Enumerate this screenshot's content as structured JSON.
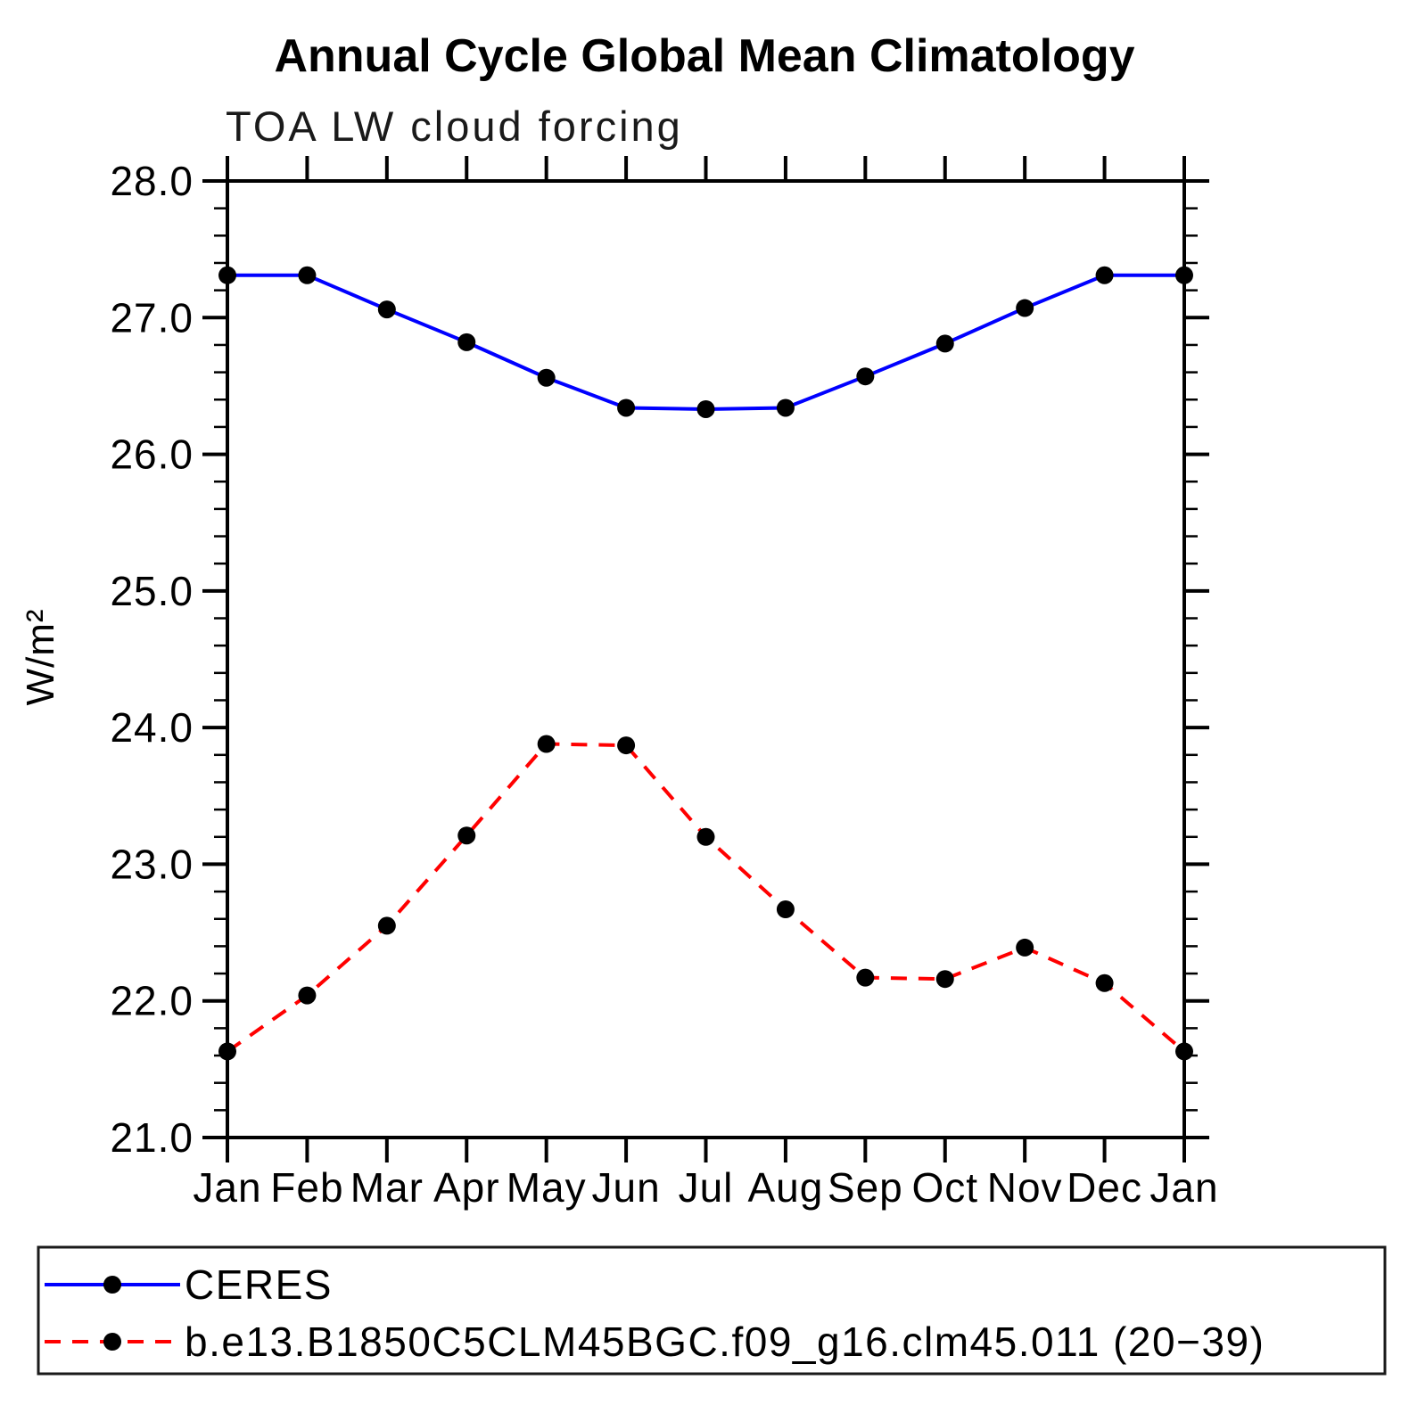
{
  "page": {
    "background_color": "#ffffff"
  },
  "colors": {
    "axis": "#000000",
    "marker": "#000000",
    "ceres_line": "#0000ff",
    "model_line": "#ff0000",
    "legend_border": "#1a1a1a"
  },
  "chart_data": {
    "type": "line",
    "title": "Annual Cycle Global Mean Climatology",
    "subtitle": "TOA LW cloud forcing",
    "ylabel": "W/m²",
    "xlabel": "",
    "x_tick_labels": [
      "Jan",
      "Feb",
      "Mar",
      "Apr",
      "May",
      "Jun",
      "Jul",
      "Aug",
      "Sep",
      "Oct",
      "Nov",
      "Dec",
      "Jan"
    ],
    "ylim": [
      21.0,
      28.0
    ],
    "y_tick_values": [
      28.0,
      27.0,
      26.0,
      25.0,
      24.0,
      23.0,
      22.0,
      21.0
    ],
    "y_tick_labels": [
      "28.0",
      "27.0",
      "26.0",
      "25.0",
      "24.0",
      "23.0",
      "22.0",
      "21.0"
    ],
    "y_minor_step": 0.2,
    "grid": "off",
    "legend_position": "bottom",
    "series": [
      {
        "name": "CERES",
        "color": "#0000ff",
        "style": "solid",
        "marker": "filled-circle",
        "marker_color": "#000000",
        "values": [
          27.31,
          27.31,
          27.06,
          26.82,
          26.56,
          26.34,
          26.33,
          26.34,
          26.57,
          26.81,
          27.07,
          27.31,
          27.31
        ]
      },
      {
        "name": "b.e13.B1850C5CLM45BGC.f09_g16.clm45.011 (20−39)",
        "color": "#ff0000",
        "style": "dashed",
        "marker": "filled-circle",
        "marker_color": "#000000",
        "values": [
          21.63,
          22.04,
          22.55,
          23.21,
          23.88,
          23.87,
          23.2,
          22.67,
          22.17,
          22.16,
          22.39,
          22.13,
          21.63
        ]
      }
    ]
  }
}
